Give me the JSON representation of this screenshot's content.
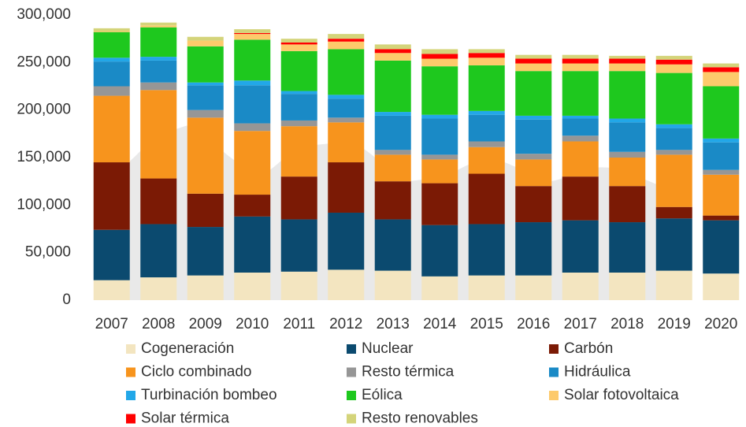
{
  "chart_data": {
    "type": "stacked_bar",
    "categories": [
      "2007",
      "2008",
      "2009",
      "2010",
      "2011",
      "2012",
      "2013",
      "2014",
      "2015",
      "2016",
      "2017",
      "2018",
      "2019",
      "2020"
    ],
    "ylim": [
      0,
      300000
    ],
    "yticks": [
      0,
      {
        "value": 50000,
        "label": "50,000"
      },
      {
        "value": 100000,
        "label": "100,000"
      },
      {
        "value": 150000,
        "label": "150,000"
      },
      {
        "value": 200000,
        "label": "200,000"
      },
      {
        "value": 250000,
        "label": "250,000"
      },
      {
        "value": 300000,
        "label": "300,000"
      }
    ],
    "grid": false,
    "legend": "bottom",
    "series": [
      {
        "name": "Cogeneración",
        "color": "#f3e5c0",
        "values": [
          21000,
          24000,
          26000,
          29000,
          30000,
          32000,
          31000,
          25000,
          26000,
          26000,
          29000,
          29000,
          31000,
          28000
        ]
      },
      {
        "name": "Nuclear",
        "color": "#0b4a6f",
        "values": [
          53000,
          56000,
          51000,
          59000,
          55000,
          60000,
          54000,
          54000,
          54000,
          56000,
          55000,
          53000,
          55000,
          56000
        ]
      },
      {
        "name": "Carbón",
        "color": "#7b1a05",
        "values": [
          71000,
          48000,
          35000,
          23000,
          45000,
          53000,
          40000,
          44000,
          53000,
          38000,
          46000,
          38000,
          12000,
          5000
        ]
      },
      {
        "name": "Ciclo combinado",
        "color": "#f7941d",
        "values": [
          70000,
          93000,
          80000,
          67000,
          53000,
          42000,
          28000,
          25000,
          28000,
          28000,
          37000,
          30000,
          55000,
          43000
        ]
      },
      {
        "name": "Resto térmica",
        "color": "#969696",
        "values": [
          10000,
          8000,
          8000,
          8000,
          6000,
          5000,
          5000,
          5000,
          6000,
          6000,
          6000,
          6000,
          5000,
          5000
        ]
      },
      {
        "name": "Hidráulica",
        "color": "#1a8ac6",
        "values": [
          26000,
          23000,
          26000,
          40000,
          28000,
          20000,
          36000,
          38000,
          28000,
          36000,
          18000,
          31000,
          23000,
          29000
        ]
      },
      {
        "name": "Turbinación bombeo",
        "color": "#22a7e8",
        "values": [
          4000,
          4000,
          3000,
          5000,
          3000,
          4000,
          4000,
          4000,
          4000,
          4000,
          3000,
          4000,
          4000,
          4000
        ]
      },
      {
        "name": "Eólica",
        "color": "#1ec81e",
        "values": [
          27000,
          31000,
          38000,
          43000,
          42000,
          48000,
          54000,
          51000,
          48000,
          47000,
          47000,
          50000,
          54000,
          55000
        ]
      },
      {
        "name": "Solar fotovoltaica",
        "color": "#fdca6b",
        "values": [
          1000,
          2000,
          6000,
          6000,
          7000,
          8000,
          8000,
          8000,
          8000,
          8000,
          8000,
          8000,
          9000,
          15000
        ]
      },
      {
        "name": "Solar térmica",
        "color": "#ff0000",
        "values": [
          0,
          0,
          0,
          1000,
          2000,
          3000,
          4000,
          5000,
          5000,
          5000,
          5000,
          5000,
          5000,
          5000
        ]
      },
      {
        "name": "Resto renovables",
        "color": "#d4d47a",
        "values": [
          3000,
          3000,
          4000,
          4000,
          4000,
          5000,
          5000,
          5000,
          4000,
          4000,
          4000,
          3000,
          4000,
          4000
        ]
      }
    ]
  }
}
